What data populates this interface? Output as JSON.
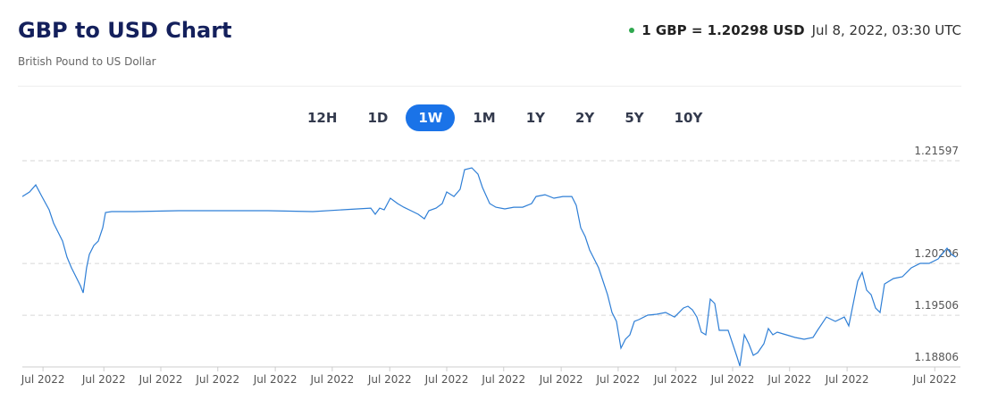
{
  "header": {
    "title": "GBP to USD Chart",
    "subtitle": "British Pound to US Dollar",
    "rate": "1 GBP = 1.20298 USD",
    "time": "Jul 8, 2022, 03:30 UTC"
  },
  "ranges": [
    "12H",
    "1D",
    "1W",
    "1M",
    "1Y",
    "2Y",
    "5Y",
    "10Y"
  ],
  "active_range": "1W",
  "chart_data": {
    "type": "line",
    "color": "#2f7fd6",
    "x": [
      0,
      1.3,
      2.4,
      3.5,
      4.8,
      5.6,
      6.4,
      7.2,
      8,
      8.8,
      9.6,
      10.4,
      10.9,
      11.5,
      12,
      12.8,
      13.6,
      14.4,
      14.9,
      16,
      20,
      28,
      36,
      44,
      52,
      60,
      62.4,
      63.2,
      64,
      64.8,
      65.9,
      67.2,
      68.3,
      69.6,
      70.9,
      72,
      72.8,
      74.1,
      75.2,
      76,
      77.3,
      78.4,
      79.2,
      80.5,
      81.6,
      82.4,
      83.7,
      84.8,
      86.4,
      88,
      89.6,
      91.2,
      92,
      93.6,
      95.2,
      96.8,
      98.4,
      99.2,
      100,
      100.8,
      101.6,
      102.4,
      103.2,
      104,
      104.8,
      105.6,
      106.4,
      107.2,
      108,
      108.8,
      109.6,
      110.4,
      112,
      113.6,
      115.2,
      116.8,
      118.4,
      119.2,
      120,
      120.8,
      121.6,
      122.4,
      123.2,
      124,
      124.8,
      126.4,
      127.2,
      128,
      128.5,
      129.3,
      130.1,
      130.9,
      131.7,
      132.8,
      133.6,
      134.4,
      135.2,
      136.8,
      138.4,
      140,
      141.6,
      142.4,
      144,
      145.6,
      147.2,
      148,
      148.8,
      149.6,
      150.4,
      151.2,
      152,
      152.8,
      153.6,
      154.4,
      156,
      157.6,
      159.2,
      160.8,
      162.4,
      164,
      165.6,
      166.4,
      167.2
    ],
    "values": [
      1.21113,
      1.21174,
      1.2127,
      1.21113,
      1.20932,
      1.20751,
      1.2063,
      1.20509,
      1.20292,
      1.20147,
      1.20026,
      1.19905,
      1.19809,
      1.20147,
      1.20328,
      1.20449,
      1.20509,
      1.2069,
      1.20896,
      1.20908,
      1.20908,
      1.2092,
      1.2092,
      1.2092,
      1.20908,
      1.20944,
      1.20956,
      1.20872,
      1.20956,
      1.20932,
      1.21089,
      1.21017,
      1.20968,
      1.2092,
      1.20872,
      1.20811,
      1.2092,
      1.20956,
      1.21017,
      1.21174,
      1.21113,
      1.2121,
      1.21476,
      1.215,
      1.21415,
      1.21234,
      1.21017,
      1.20968,
      1.20944,
      1.20968,
      1.20968,
      1.21017,
      1.21113,
      1.21137,
      1.21089,
      1.21113,
      1.21113,
      1.20992,
      1.2069,
      1.2057,
      1.20388,
      1.20268,
      1.20147,
      1.19966,
      1.19784,
      1.19543,
      1.19422,
      1.1906,
      1.1918,
      1.19241,
      1.19422,
      1.19446,
      1.19507,
      1.19519,
      1.19543,
      1.19482,
      1.19603,
      1.19627,
      1.19579,
      1.19482,
      1.19277,
      1.19241,
      1.19724,
      1.19664,
      1.19301,
      1.19301,
      1.1912,
      1.18939,
      1.18818,
      1.19241,
      1.1912,
      1.18963,
      1.18999,
      1.1912,
      1.19325,
      1.19241,
      1.19277,
      1.19241,
      1.19205,
      1.1918,
      1.19205,
      1.19301,
      1.19482,
      1.19422,
      1.19482,
      1.19362,
      1.19664,
      1.19966,
      1.20086,
      1.19845,
      1.19784,
      1.19603,
      1.19543,
      1.19929,
      1.20002,
      1.20026,
      1.20147,
      1.20207,
      1.20207,
      1.20268,
      1.20413,
      1.20328,
      1.20292
    ],
    "xlim": [
      0,
      167.2
    ],
    "xticks": [
      {
        "value": 3.7,
        "label": "Jul 2022"
      },
      {
        "value": 14.6,
        "label": "Jul 2022"
      },
      {
        "value": 24.8,
        "label": "Jul 2022"
      },
      {
        "value": 35,
        "label": "Jul 2022"
      },
      {
        "value": 45.3,
        "label": "Jul 2022"
      },
      {
        "value": 55.5,
        "label": "Jul 2022"
      },
      {
        "value": 65.8,
        "label": "Jul 2022"
      },
      {
        "value": 76,
        "label": "Jul 2022"
      },
      {
        "value": 86.2,
        "label": "Jul 2022"
      },
      {
        "value": 96.5,
        "label": "Jul 2022"
      },
      {
        "value": 106.7,
        "label": "Jul 2022"
      },
      {
        "value": 117,
        "label": "Jul 2022"
      },
      {
        "value": 127.2,
        "label": "Jul 2022"
      },
      {
        "value": 137.4,
        "label": "Jul 2022"
      },
      {
        "value": 147.7,
        "label": "Jul 2022"
      },
      {
        "value": 163.4,
        "label": "Jul 2022"
      }
    ],
    "ylim": [
      1.18806,
      1.21597
    ],
    "yticks": [
      1.18806,
      1.19506,
      1.20206,
      1.21597
    ],
    "grid": true
  }
}
